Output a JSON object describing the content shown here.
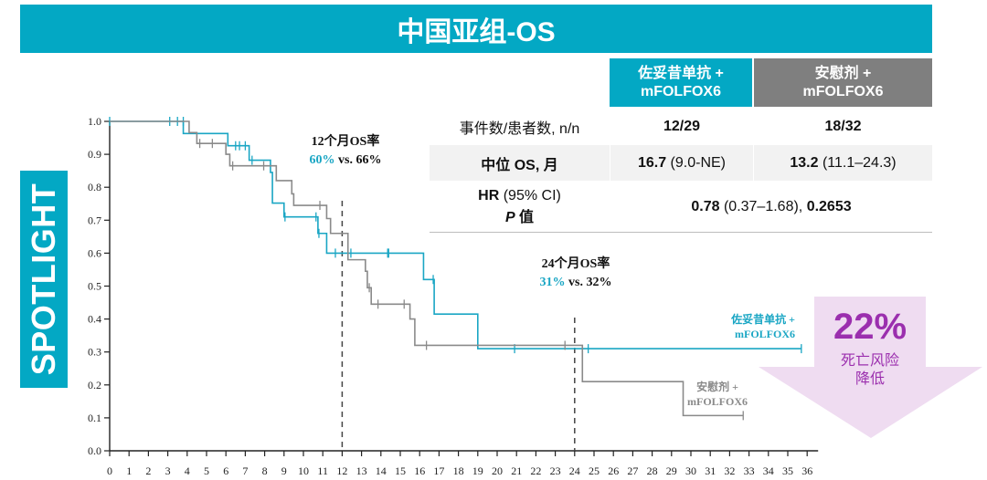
{
  "banner": {
    "title": "中国亚组-OS"
  },
  "side_label": "SPOTLIGHT",
  "table": {
    "headers": [
      {
        "line1": "佐妥昔单抗 +",
        "line2": "mFOLFOX6",
        "color": "#03a8c4"
      },
      {
        "line1": "安慰剂 +",
        "line2": "mFOLFOX6",
        "color": "#7f7f7f"
      }
    ],
    "rows": [
      {
        "label": "事件数/患者数, n/n",
        "a_bold": "12/29",
        "b_bold": "18/32"
      },
      {
        "label": "中位 OS, 月",
        "a_bold": "16.7",
        "a_rest": " (9.0-NE)",
        "b_bold": "13.2",
        "b_rest": " (11.1–24.3)"
      },
      {
        "label_bold": "HR",
        "label_rest": " (95% CI)",
        "label2_italic": "P",
        "label2_rest": " 值",
        "span_bold1": "0.78",
        "span_rest": " (0.37–1.68), ",
        "span_bold2": "0.2653"
      }
    ]
  },
  "annotations": {
    "m12": {
      "title": "12个月OS率",
      "a": "60%",
      "vs": " vs. 66%"
    },
    "m24": {
      "title": "24个月OS率",
      "a": "31%",
      "vs": " vs. 32%"
    }
  },
  "risk": {
    "value": "22%",
    "line1": "死亡风险",
    "line2": "降低",
    "color": "#9b2fae",
    "fill": "#efdcf1"
  },
  "chart_data": {
    "type": "line",
    "title": "中国亚组-OS",
    "xlabel": "",
    "ylabel": "",
    "xlim": [
      0,
      36
    ],
    "ylim": [
      0,
      1.0
    ],
    "x_ticks": [
      "0",
      "1",
      "2",
      "3",
      "4",
      "5",
      "6",
      "7",
      "8",
      "9",
      "10",
      "11",
      "12",
      "13",
      "14",
      "15",
      "16",
      "17",
      "18",
      "19",
      "20",
      "21",
      "22",
      "23",
      "24",
      "25",
      "26",
      "27",
      "28",
      "29",
      "30",
      "31",
      "32",
      "33",
      "34",
      "35",
      "36"
    ],
    "y_ticks": [
      "0.0",
      "0.1",
      "0.2",
      "0.3",
      "0.4",
      "0.5",
      "0.6",
      "0.7",
      "0.8",
      "0.9",
      "1.0"
    ],
    "reference_lines_x": [
      12,
      24
    ],
    "series": [
      {
        "name": "佐妥昔单抗 + mFOLFOX6",
        "legend_line1": "佐妥昔单抗 +",
        "legend_line2": "mFOLFOX6",
        "color": "#1aa6c4",
        "steps": [
          [
            0,
            1.0
          ],
          [
            3.8,
            0.963
          ],
          [
            6.1,
            0.926
          ],
          [
            7.2,
            0.882
          ],
          [
            8.3,
            0.845
          ],
          [
            8.4,
            0.752
          ],
          [
            9.0,
            0.71
          ],
          [
            10.75,
            0.66
          ],
          [
            11.2,
            0.6
          ],
          [
            16.2,
            0.52
          ],
          [
            16.75,
            0.415
          ],
          [
            19.0,
            0.31
          ]
        ],
        "end": 35.7,
        "censors": [
          [
            0,
            1.0
          ],
          [
            3.1,
            1.0
          ],
          [
            3.5,
            1.0
          ],
          [
            3.8,
            1.0
          ],
          [
            6.5,
            0.926
          ],
          [
            6.7,
            0.926
          ],
          [
            7.0,
            0.926
          ],
          [
            7.35,
            0.882
          ],
          [
            9.05,
            0.71
          ],
          [
            10.65,
            0.71
          ],
          [
            10.8,
            0.66
          ],
          [
            11.65,
            0.6
          ],
          [
            12.45,
            0.6
          ],
          [
            14.35,
            0.6
          ],
          [
            14.4,
            0.6
          ],
          [
            16.7,
            0.52
          ],
          [
            20.9,
            0.31
          ],
          [
            24.7,
            0.31
          ],
          [
            35.7,
            0.31
          ]
        ]
      },
      {
        "name": "安慰剂 + mFOLFOX6",
        "legend_line1": "安慰剂 +",
        "legend_line2": "mFOLFOX6",
        "color": "#8a8a8a",
        "steps": [
          [
            0,
            1.0
          ],
          [
            4.1,
            0.966
          ],
          [
            4.5,
            0.933
          ],
          [
            6.0,
            0.9
          ],
          [
            6.2,
            0.865
          ],
          [
            8.6,
            0.82
          ],
          [
            9.4,
            0.78
          ],
          [
            9.5,
            0.745
          ],
          [
            11.2,
            0.705
          ],
          [
            11.4,
            0.66
          ],
          [
            12.3,
            0.58
          ],
          [
            13.2,
            0.545
          ],
          [
            13.3,
            0.495
          ],
          [
            13.5,
            0.445
          ],
          [
            15.5,
            0.4
          ],
          [
            15.75,
            0.32
          ],
          [
            24.4,
            0.21
          ],
          [
            29.6,
            0.107
          ]
        ],
        "end": 32.7,
        "censors": [
          [
            4.65,
            0.933
          ],
          [
            5.3,
            0.933
          ],
          [
            6.35,
            0.865
          ],
          [
            7.95,
            0.865
          ],
          [
            10.85,
            0.745
          ],
          [
            13.4,
            0.495
          ],
          [
            13.85,
            0.445
          ],
          [
            15.2,
            0.445
          ],
          [
            16.35,
            0.32
          ],
          [
            23.5,
            0.32
          ],
          [
            32.7,
            0.107
          ]
        ]
      }
    ]
  }
}
